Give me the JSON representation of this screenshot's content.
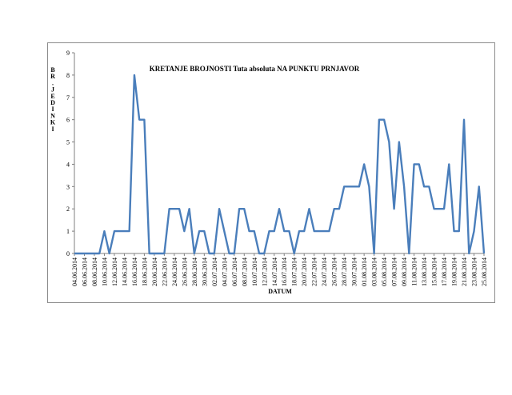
{
  "chart_data": {
    "type": "line",
    "title": "KRETANJE BROJNOSTI Tuta absoluta NA PUNKTU PRNJAVOR",
    "xlabel": "DATUM",
    "ylabel": "BR. JEDINKI",
    "ylabel_letters": [
      "B",
      "R",
      ".",
      "J",
      "E",
      "D",
      "I",
      "N",
      "K",
      "I"
    ],
    "ylim": [
      0,
      9
    ],
    "yticks": [
      "0",
      "1",
      "2",
      "3",
      "4",
      "5",
      "6",
      "7",
      "8",
      "9"
    ],
    "grid": false,
    "line_color": "#4a7ebb",
    "x": [
      "04.06.2014",
      "05.06.2014",
      "06.06.2014",
      "07.06.2014",
      "08.06.2014",
      "09.06.2014",
      "10.06.2014",
      "11.06.2014",
      "12.06.2014",
      "13.06.2014",
      "14.06.2014",
      "15.06.2014",
      "16.06.2014",
      "17.06.2014",
      "18.06.2014",
      "19.06.2014",
      "20.06.2014",
      "21.06.2014",
      "22.06.2014",
      "23.06.2014",
      "24.06.2014",
      "25.06.2014",
      "26.06.2014",
      "27.06.2014",
      "28.06.2014",
      "29.06.2014",
      "30.06.2014",
      "01.07.2014",
      "02.07.2014",
      "03.07.2014",
      "04.07.2014",
      "05.07.2014",
      "06.07.2014",
      "07.07.2014",
      "08.07.2014",
      "09.07.2014",
      "10.07.2014",
      "11.07.2014",
      "12.07.2014",
      "13.07.2014",
      "14.07.2014",
      "15.07.2014",
      "16.07.2014",
      "17.07.2014",
      "18.07.2014",
      "19.07.2014",
      "20.07.2014",
      "21.07.2014",
      "22.07.2014",
      "23.07.2014",
      "24.07.2014",
      "25.07.2014",
      "26.07.2014",
      "27.07.2014",
      "28.07.2014",
      "29.07.2014",
      "30.07.2014",
      "31.07.2014",
      "01.08.2014",
      "02.08.2014",
      "03.08.2014",
      "04.08.2014",
      "05.08.2014",
      "06.08.2014",
      "07.08.2014",
      "08.08.2014",
      "09.08.2014",
      "10.08.2014",
      "11.08.2014",
      "12.08.2014",
      "13.08.2014",
      "14.08.2014",
      "15.08.2014",
      "16.08.2014",
      "17.08.2014",
      "18.08.2014",
      "19.08.2014",
      "20.08.2014",
      "21.08.2014",
      "22.08.2014",
      "23.08.2014",
      "24.08.2014",
      "25.08.2014"
    ],
    "xticks": [
      "04.06.2014",
      "06.06.2014",
      "08.06.2014",
      "10.06.2014",
      "12.06.2014",
      "14.06.2014",
      "16.06.2014",
      "18.06.2014",
      "20.06.2014",
      "22.06.2014",
      "24.06.2014",
      "26.06.2014",
      "28.06.2014",
      "30.06.2014",
      "02.07.2014",
      "04.07.2014",
      "06.07.2014",
      "08.07.2014",
      "10.07.2014",
      "12.07.2014",
      "14.07.2014",
      "16.07.2014",
      "18.07.2014",
      "20.07.2014",
      "22.07.2014",
      "24.07.2014",
      "26.07.2014",
      "28.07.2014",
      "30.07.2014",
      "01.08.2014",
      "03.08.2014",
      "05.08.2014",
      "07.08.2014",
      "09.08.2014",
      "11.08.2014",
      "13.08.2014",
      "15.08.2014",
      "17.08.2014",
      "19.08.2014",
      "21.08.2014",
      "23.08.2014",
      "25.08.2014"
    ],
    "values": [
      0,
      0,
      0,
      0,
      0,
      0,
      1,
      0,
      1,
      1,
      1,
      1,
      8,
      6,
      6,
      0,
      0,
      0,
      0,
      2,
      2,
      2,
      1,
      2,
      0,
      1,
      1,
      0,
      0,
      2,
      1,
      0,
      0,
      2,
      2,
      1,
      1,
      0,
      0,
      1,
      1,
      2,
      1,
      1,
      0,
      1,
      1,
      2,
      1,
      1,
      1,
      1,
      2,
      2,
      3,
      3,
      3,
      3,
      4,
      3,
      0,
      6,
      6,
      5,
      2,
      5,
      3,
      0,
      4,
      4,
      3,
      3,
      2,
      2,
      2,
      4,
      1,
      1,
      6,
      0,
      1,
      3,
      0
    ]
  }
}
